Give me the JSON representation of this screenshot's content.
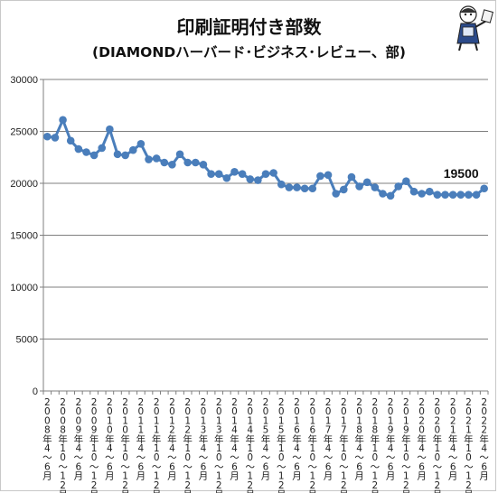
{
  "chart_data": {
    "type": "line",
    "title": "印刷証明付き部数",
    "subtitle": "(DIAMONDハーバード･ビジネス･レビュー、部)",
    "ylim": [
      0,
      30000
    ],
    "yticks": [
      "0",
      "5000",
      "10000",
      "15000",
      "20000",
      "25000",
      "30000"
    ],
    "grid": "horizontal",
    "series_color": "#4a7ebb",
    "x": [
      "2008年4～6月",
      "2008年7～9月",
      "2008年10～12月",
      "2009年1～3月",
      "2009年4～6月",
      "2009年7～9月",
      "2009年10～12月",
      "2010年1～3月",
      "2010年4～6月",
      "2010年7～9月",
      "2010年10～12月",
      "2011年1～3月",
      "2011年4～6月",
      "2011年7～9月",
      "2011年10～12月",
      "2012年1～3月",
      "2012年4～6月",
      "2012年7～9月",
      "2012年10～12月",
      "2013年1～3月",
      "2013年4～6月",
      "2013年7～9月",
      "2013年10～12月",
      "2014年1～3月",
      "2014年4～6月",
      "2014年7～9月",
      "2014年10～12月",
      "2015年1～3月",
      "2015年4～6月",
      "2015年7～9月",
      "2015年10～12月",
      "2016年1～3月",
      "2016年4～6月",
      "2016年7～9月",
      "2016年10～12月",
      "2017年1～3月",
      "2017年4～6月",
      "2017年7～9月",
      "2017年10～12月",
      "2018年1～3月",
      "2018年4～6月",
      "2018年7～9月",
      "2018年10～12月",
      "2019年1～3月",
      "2019年4～6月",
      "2019年7～9月",
      "2019年10～12月",
      "2020年1～3月",
      "2020年4～6月",
      "2020年7～9月",
      "2020年10～12月",
      "2021年1～3月",
      "2021年4～6月",
      "2021年7～9月",
      "2021年10～12月",
      "2022年1～3月",
      "2022年4～6月"
    ],
    "xtick_labels_shown": [
      "2008年4～6月",
      "2008年10～12月",
      "2009年4～6月",
      "2009年10～12月",
      "2010年4～6月",
      "2010年10～12月",
      "2011年4～6月",
      "2011年10～12月",
      "2012年4～6月",
      "2012年10～12月",
      "2013年4～6月",
      "2013年10～12月",
      "2014年4～6月",
      "2014年10～12月",
      "2015年4～6月",
      "2015年10～12月",
      "2016年4～6月",
      "2016年10～12月",
      "2017年4～6月",
      "2017年10～12月",
      "2018年4～6月",
      "2018年10～12月",
      "2019年4～6月",
      "2019年10～12月",
      "2020年4～6月",
      "2020年10～12月",
      "2021年4～6月",
      "2021年10～12月",
      "2022年4～6月"
    ],
    "values": [
      24500,
      24400,
      26100,
      24100,
      23300,
      23000,
      22700,
      23400,
      25200,
      22800,
      22700,
      23200,
      23800,
      22300,
      22400,
      22000,
      21800,
      22800,
      22000,
      22000,
      21800,
      20900,
      20900,
      20500,
      21100,
      20900,
      20400,
      20300,
      20900,
      21000,
      19900,
      19600,
      19600,
      19500,
      19500,
      20700,
      20800,
      19000,
      19400,
      20600,
      19700,
      20100,
      19600,
      19000,
      18800,
      19700,
      20200,
      19200,
      19000,
      19200,
      18900,
      18900,
      18900,
      18900,
      18900,
      18900,
      19500
    ],
    "annotation": "19500"
  },
  "mascot_icon": "mascot-icon"
}
